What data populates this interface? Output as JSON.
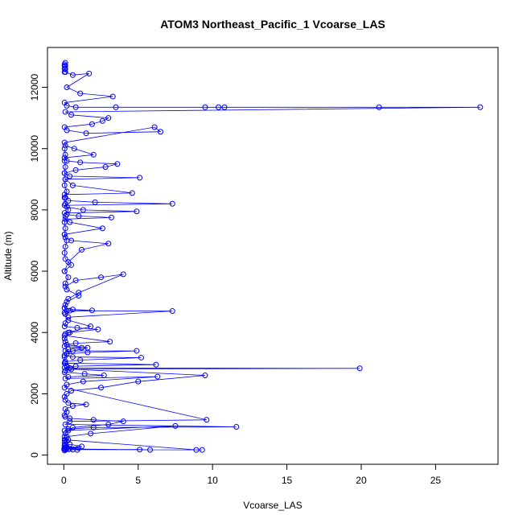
{
  "chart_data": {
    "type": "scatter",
    "title": "ATOM3 Northeast_Pacific_1 Vcoarse_LAS",
    "xlabel": "Vcoarse_LAS",
    "ylabel": "Altitude (m)",
    "xlim": [
      -1.1,
      29.2
    ],
    "ylim": [
      -300,
      13300
    ],
    "x_ticks": [
      0,
      5,
      10,
      15,
      20,
      25
    ],
    "y_ticks": [
      0,
      2000,
      4000,
      6000,
      8000,
      10000,
      12000
    ],
    "x_tick_labels": [
      "0",
      "5",
      "10",
      "15",
      "20",
      "25"
    ],
    "y_tick_labels": [
      "0",
      "2000",
      "4000",
      "6000",
      "8000",
      "10000",
      "12000"
    ],
    "grid": false,
    "legend": "none",
    "series": [
      {
        "style": "line+points",
        "color": "#0000ff",
        "x": [
          0.05,
          0.1,
          0.02,
          0.1,
          0.3,
          0.9,
          0.2,
          0.05,
          0.4,
          1.2,
          0.1,
          0.05,
          0.2,
          0.3,
          0.1,
          0.05,
          0.1,
          0.3,
          0.6,
          3.0,
          4.0,
          2.0,
          0.4,
          0.1,
          0.05,
          0.2,
          0.1,
          0.6,
          1.5,
          0.3,
          0.1,
          0.05,
          0.2,
          0.5,
          2.5,
          5.0,
          9.5,
          0.5,
          0.2,
          0.1,
          0.05,
          0.2,
          0.6,
          1.6,
          0.2,
          0.1,
          0.05,
          0.3,
          1.8,
          0.3,
          0.1,
          0.05,
          0.2,
          1.0,
          0.2,
          0.1,
          0.3,
          0.05,
          0.5,
          0.1,
          0.05,
          0.1,
          0.2,
          0.05,
          0.1,
          0.05,
          0.1,
          0.3,
          0.1,
          0.05,
          0.2,
          0.05,
          0.1,
          0.05,
          0.1,
          0.05,
          0.1,
          0.05
        ],
        "y": [
          150,
          180,
          200,
          210,
          190,
          170,
          220,
          300,
          350,
          280,
          250,
          400,
          450,
          500,
          480,
          600,
          700,
          800,
          900,
          1000,
          1100,
          1150,
          1200,
          1250,
          1300,
          1400,
          1500,
          1600,
          1650,
          1700,
          1800,
          1900,
          2000,
          2100,
          2200,
          2400,
          2600,
          2800,
          2900,
          3000,
          3200,
          3300,
          3400,
          3500,
          3600,
          3700,
          3800,
          4000,
          4200,
          4400,
          4600,
          4800,
          5000,
          5200,
          5400,
          5600,
          5800,
          6000,
          6200,
          6400,
          6600,
          6800,
          7000,
          7200,
          7400,
          7600,
          7800,
          8000,
          8200,
          8400,
          8600,
          8800,
          9000,
          9200,
          9400,
          9600,
          9800,
          10000
        ]
      },
      {
        "style": "line+points",
        "color": "#0000ff",
        "x": [
          0.1,
          0.8,
          2.5,
          4.0,
          1.0,
          0.3,
          0.1,
          0.05,
          0.6,
          1.9,
          0.2,
          0.05,
          0.4,
          7.3,
          0.3,
          0.1,
          0.05,
          0.9,
          2.3,
          0.4,
          0.1,
          0.05,
          3.1,
          0.8,
          0.2,
          0.05,
          1.2,
          0.3,
          0.1,
          4.9,
          1.6,
          0.2,
          0.05,
          0.6,
          5.2,
          1.1,
          0.1,
          0.05,
          6.2,
          0.8,
          0.2,
          0.05,
          0.4,
          19.9,
          0.5,
          0.1,
          0.05,
          1.4,
          2.7,
          0.3,
          0.1,
          6.3,
          1.3,
          0.2,
          0.05,
          9.6,
          0.4,
          0.1,
          11.6,
          2.0,
          0.3,
          0.05,
          7.5,
          1.8,
          0.2,
          0.05,
          8.9,
          9.3,
          0.6,
          0.1,
          5.1,
          5.8,
          0.4,
          0.05,
          1.0,
          0.2,
          0.05,
          0.1
        ],
        "y": [
          5500,
          5700,
          5800,
          5900,
          5300,
          5100,
          4900,
          4800,
          4750,
          4720,
          4700,
          4650,
          4710,
          4700,
          4500,
          4300,
          4200,
          4150,
          4100,
          4000,
          3950,
          3900,
          3700,
          3650,
          3600,
          3550,
          3500,
          3450,
          3400,
          3400,
          3350,
          3300,
          3250,
          3200,
          3180,
          3100,
          3050,
          3000,
          2950,
          2900,
          2870,
          2850,
          2840,
          2830,
          2800,
          2750,
          2700,
          2650,
          2600,
          2550,
          2500,
          2560,
          2400,
          2300,
          2200,
          1150,
          1100,
          1000,
          920,
          900,
          850,
          800,
          950,
          700,
          600,
          500,
          170,
          170,
          180,
          190,
          180,
          170,
          200,
          210,
          230,
          260,
          300,
          350
        ]
      },
      {
        "style": "line+points",
        "color": "#0000ff",
        "x": [
          0.05,
          0.3,
          1.2,
          3.0,
          0.5,
          0.1,
          0.05,
          2.6,
          0.4,
          0.1,
          3.2,
          1.0,
          0.2,
          0.05,
          4.9,
          1.3,
          0.2,
          0.05,
          7.3,
          2.1,
          0.3,
          0.1,
          0.05,
          4.6,
          0.6,
          0.1,
          5.1,
          0.4,
          0.05,
          0.8,
          2.8,
          3.6,
          1.1,
          0.2,
          0.05,
          2.0,
          0.7,
          0.1,
          0.05,
          6.1,
          6.5,
          1.5,
          0.2,
          0.05,
          1.9,
          2.6,
          3.0,
          0.5,
          0.1,
          28.0,
          21.2,
          10.8,
          10.4,
          9.5,
          3.5,
          0.8,
          0.2,
          0.05,
          3.3,
          1.1,
          0.2,
          1.7,
          0.6,
          0.1,
          0.05,
          0.1,
          0.05,
          0.1,
          0.05,
          0.1,
          0.05
        ],
        "y": [
          6000,
          6300,
          6700,
          6900,
          7000,
          7100,
          7200,
          7400,
          7600,
          7700,
          7750,
          7800,
          7850,
          7900,
          7950,
          8000,
          8100,
          8150,
          8200,
          8250,
          8300,
          8400,
          8500,
          8550,
          8800,
          9000,
          9050,
          9100,
          9200,
          9300,
          9400,
          9500,
          9550,
          9600,
          9700,
          9800,
          10000,
          10100,
          10200,
          10700,
          10550,
          10500,
          10600,
          10700,
          10800,
          10900,
          11000,
          11100,
          11200,
          11350,
          11350,
          11350,
          11350,
          11350,
          11350,
          11350,
          11400,
          11500,
          11700,
          11800,
          12000,
          12450,
          12400,
          12500,
          12600,
          12700,
          12750,
          12800,
          12700,
          12600,
          12500
        ]
      }
    ]
  }
}
